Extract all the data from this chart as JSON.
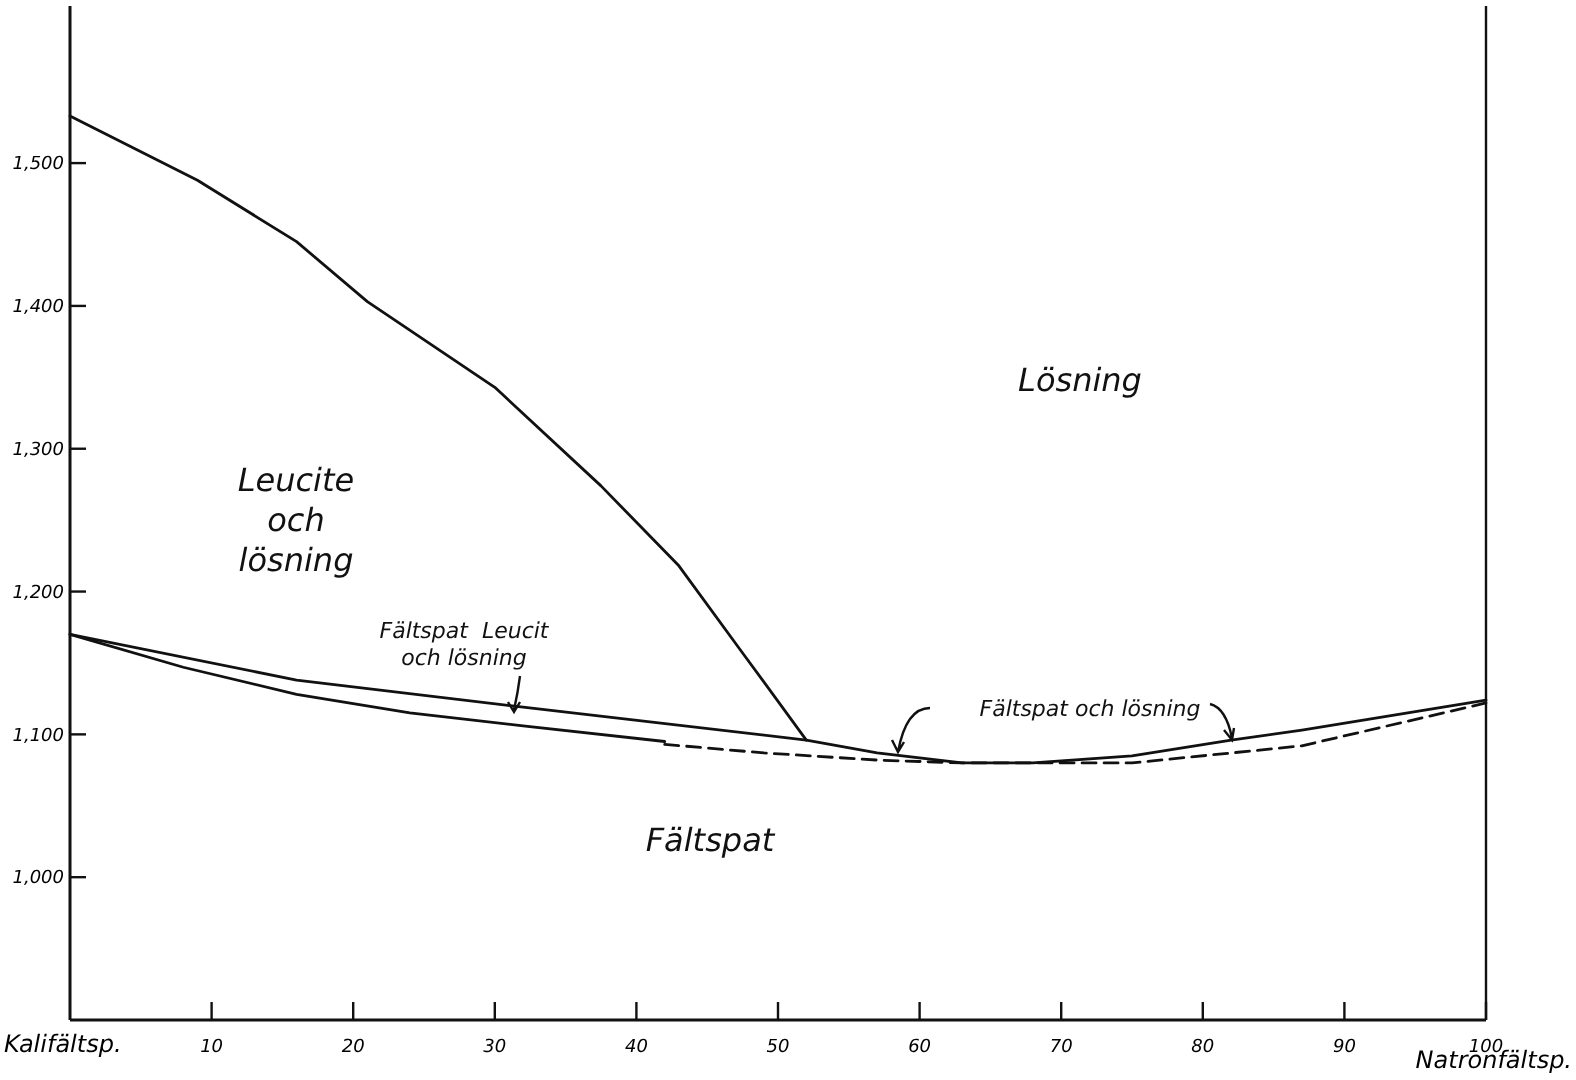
{
  "chart_data": {
    "type": "line",
    "xlabel": "Natronfältsp.",
    "xlim": [
      0,
      100
    ],
    "ylim": [
      900,
      1610
    ],
    "xticks": [
      {
        "value": 0,
        "label": "Kalifältsp."
      },
      10,
      20,
      30,
      40,
      50,
      60,
      70,
      80,
      90,
      100
    ],
    "yticks": [
      {
        "value": 1000,
        "label": "1,000"
      },
      {
        "value": 1100,
        "label": "1,100"
      },
      {
        "value": 1200,
        "label": "1,200"
      },
      {
        "value": 1300,
        "label": "1,300"
      },
      {
        "value": 1400,
        "label": "1,400"
      },
      {
        "value": 1500,
        "label": "1,500"
      }
    ],
    "grid": false,
    "series": [
      {
        "color": "#111111",
        "line_style": "solid",
        "x": [
          0,
          9,
          16,
          21,
          30,
          37.5,
          43,
          47.5,
          52
        ],
        "values": [
          1533,
          1488,
          1445,
          1403,
          1343,
          1274,
          1218,
          1157,
          1096
        ]
      },
      {
        "color": "#111111",
        "line_style": "solid",
        "x": [
          0,
          16,
          32,
          52,
          57,
          63,
          68,
          75,
          82,
          87,
          100
        ],
        "values": [
          1170,
          1138,
          1119,
          1096,
          1087,
          1080,
          1080,
          1085,
          1096,
          1103,
          1124
        ]
      },
      {
        "color": "#111111",
        "line_style": "solid",
        "x": [
          0,
          8,
          16,
          24,
          32,
          42
        ],
        "values": [
          1170,
          1147,
          1128,
          1115,
          1106,
          1095
        ]
      },
      {
        "color": "#111111",
        "line_style": "dashed",
        "x": [
          42,
          49,
          57,
          63,
          75,
          82,
          87,
          100
        ],
        "values": [
          1093,
          1087,
          1082,
          1080,
          1080,
          1087,
          1092,
          1122
        ]
      }
    ],
    "annotations": [
      "Lösning",
      "Leucite\noch\nlösning",
      "Fältspat",
      "Fältspat  Leucit\noch lösning",
      "Fältspat och lösning"
    ]
  }
}
